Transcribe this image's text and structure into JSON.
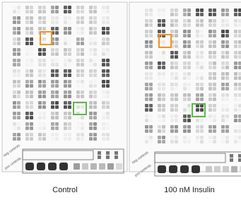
{
  "panels": [
    {
      "label": "Control",
      "neg_label": "neg controls",
      "pos_label": "pos controls"
    },
    {
      "label": "100 nM Insulin",
      "neg_label": "neg controls",
      "pos_label": "pos controls"
    }
  ]
}
